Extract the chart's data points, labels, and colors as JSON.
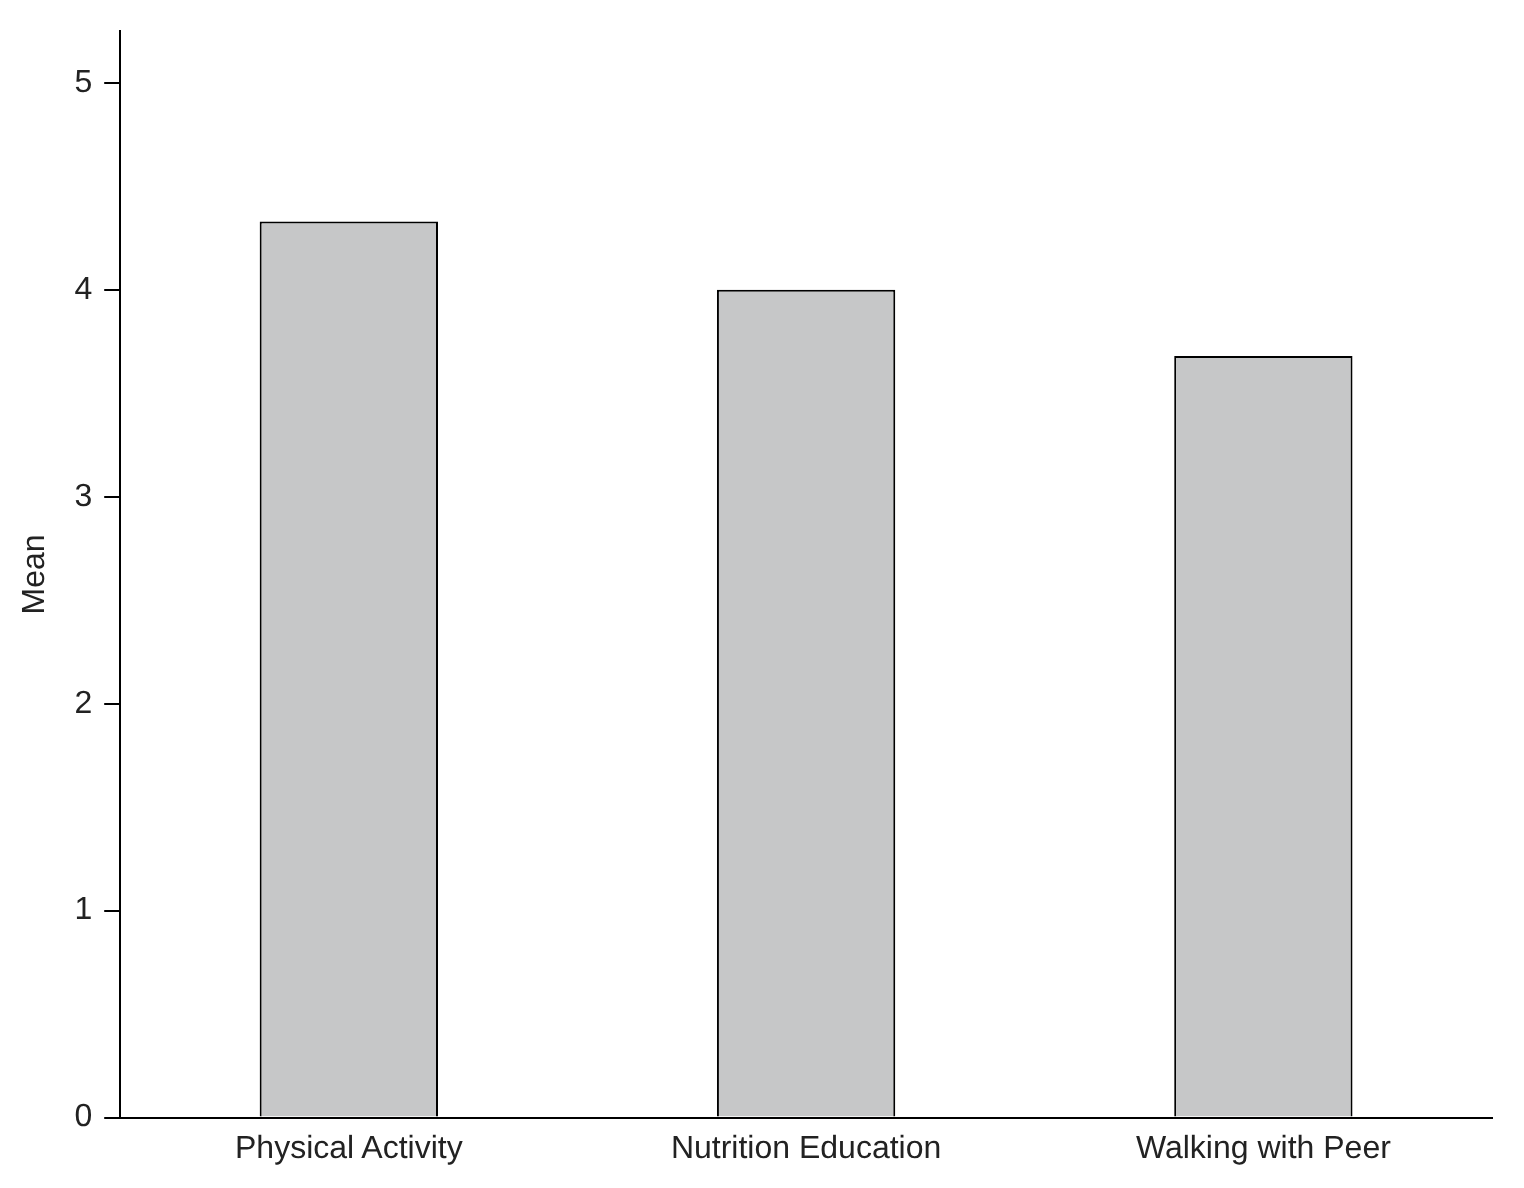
{
  "chart_data": {
    "type": "bar",
    "ylabel": "Mean",
    "categories": [
      "Physical Activity",
      "Nutrition Education",
      "Walking with Peer"
    ],
    "values": [
      4.33,
      4.0,
      3.68
    ],
    "color": "#c6c7c8",
    "ylim": [
      0,
      5.25
    ],
    "yticks": [
      0,
      1,
      2,
      3,
      4,
      5
    ],
    "grid": false,
    "legend": false
  }
}
